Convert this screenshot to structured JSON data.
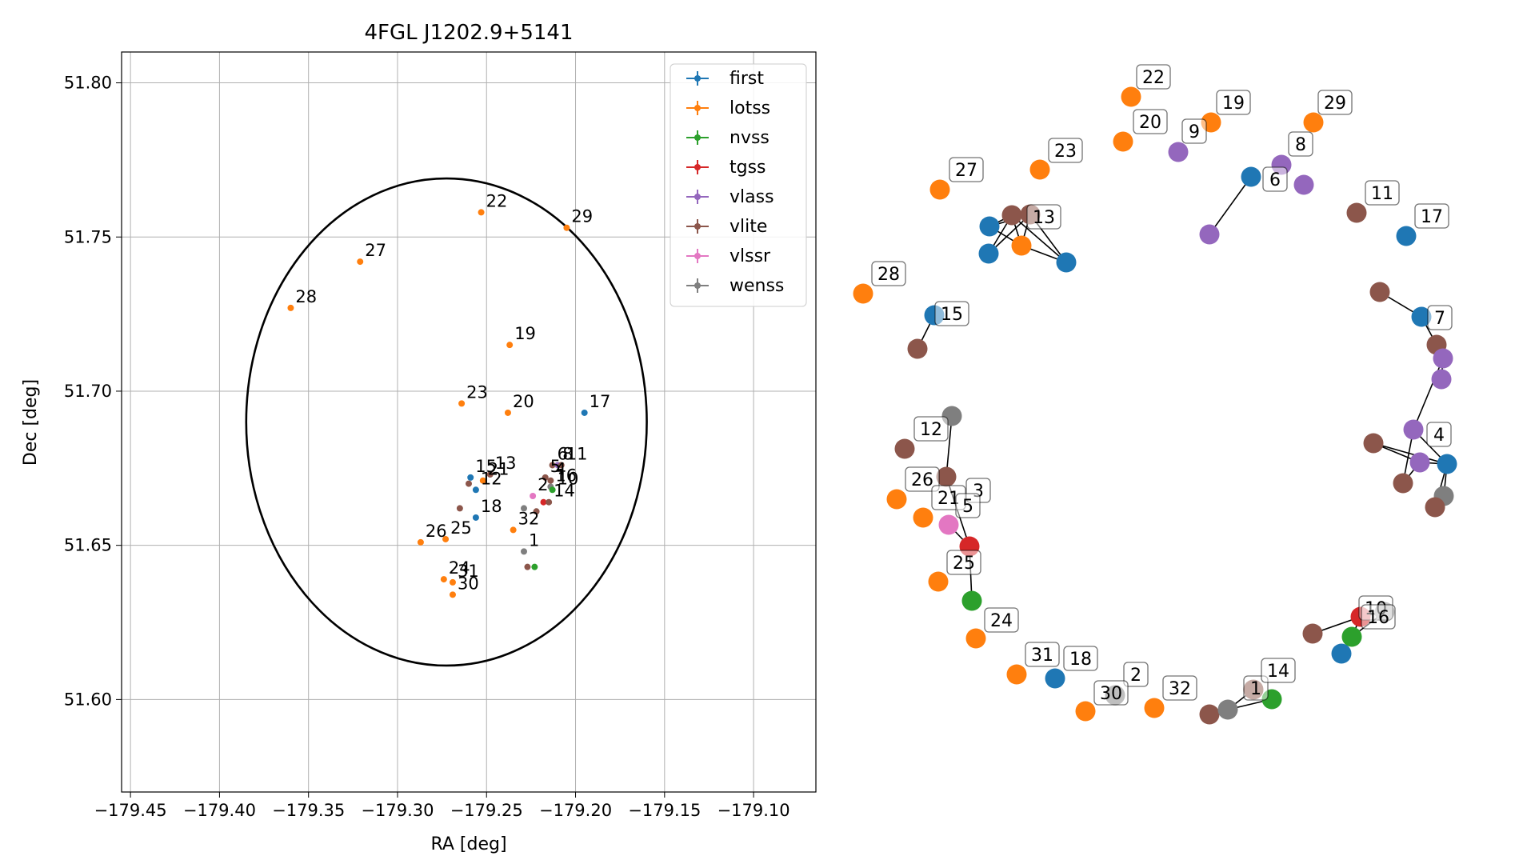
{
  "colors": {
    "first": "#1f77b4",
    "lotss": "#ff7f0e",
    "nvss": "#2ca02c",
    "tgss": "#d62728",
    "vlass": "#9467bd",
    "vlite": "#8c564b",
    "vlssr": "#e377c2",
    "wenss": "#7f7f7f"
  },
  "chart_data": [
    {
      "type": "scatter",
      "title": "4FGL J1202.9+5141",
      "xlabel": "RA [deg]",
      "ylabel": "Dec [deg]",
      "xlim": [
        -179.455,
        -179.065
      ],
      "ylim": [
        51.57,
        51.81
      ],
      "xticks": [
        -179.45,
        -179.4,
        -179.35,
        -179.3,
        -179.25,
        -179.2,
        -179.15,
        -179.1
      ],
      "xtick_labels": [
        "−179.45",
        "−179.40",
        "−179.35",
        "−179.30",
        "−179.25",
        "−179.20",
        "−179.15",
        "−179.10"
      ],
      "yticks": [
        51.6,
        51.65,
        51.7,
        51.75,
        51.8
      ],
      "ytick_labels": [
        "51.60",
        "51.65",
        "51.70",
        "51.75",
        "51.80"
      ],
      "grid": true,
      "legend_position": "top-right",
      "legend": [
        "first",
        "lotss",
        "nvss",
        "tgss",
        "vlass",
        "vlite",
        "vlssr",
        "wenss"
      ],
      "ellipse": {
        "center": [
          -179.2725,
          51.69
        ],
        "semi_axis_ra": 0.1125,
        "semi_axis_dec": 0.079
      },
      "points": [
        {
          "survey": "lotss",
          "ra": -179.253,
          "dec": 51.758,
          "label": "22"
        },
        {
          "survey": "lotss",
          "ra": -179.205,
          "dec": 51.753,
          "label": "29"
        },
        {
          "survey": "lotss",
          "ra": -179.321,
          "dec": 51.742,
          "label": "27"
        },
        {
          "survey": "lotss",
          "ra": -179.36,
          "dec": 51.727,
          "label": "28"
        },
        {
          "survey": "lotss",
          "ra": -179.237,
          "dec": 51.715,
          "label": "19"
        },
        {
          "survey": "lotss",
          "ra": -179.264,
          "dec": 51.696,
          "label": "23"
        },
        {
          "survey": "lotss",
          "ra": -179.238,
          "dec": 51.693,
          "label": "20"
        },
        {
          "survey": "first",
          "ra": -179.195,
          "dec": 51.693,
          "label": "17"
        },
        {
          "survey": "vlite",
          "ra": -179.213,
          "dec": 51.676,
          "label": "6"
        },
        {
          "survey": "vlass",
          "ra": -179.21,
          "dec": 51.676,
          "label": "8"
        },
        {
          "survey": "vlite",
          "ra": -179.208,
          "dec": 51.676,
          "label": "11"
        },
        {
          "survey": "first",
          "ra": -179.259,
          "dec": 51.672,
          "label": "15"
        },
        {
          "survey": "vlite",
          "ra": -179.248,
          "dec": 51.673,
          "label": "13"
        },
        {
          "survey": "lotss",
          "ra": -179.252,
          "dec": 51.671,
          "label": "21"
        },
        {
          "survey": "vlite",
          "ra": -179.214,
          "dec": 51.671,
          "label": "4"
        },
        {
          "survey": "wenss",
          "ra": -179.214,
          "dec": 51.669,
          "label": "16"
        },
        {
          "survey": "vlite",
          "ra": -179.217,
          "dec": 51.672,
          "label": "5"
        },
        {
          "survey": "nvss",
          "ra": -179.213,
          "dec": 51.668,
          "label": "10"
        },
        {
          "survey": "first",
          "ra": -179.256,
          "dec": 51.668,
          "label": "12"
        },
        {
          "survey": "vlite",
          "ra": -179.26,
          "dec": 51.67,
          "label": ""
        },
        {
          "survey": "vlssr",
          "ra": -179.224,
          "dec": 51.666,
          "label": "2"
        },
        {
          "survey": "tgss",
          "ra": -179.218,
          "dec": 51.664,
          "label": ""
        },
        {
          "survey": "vlite",
          "ra": -179.215,
          "dec": 51.664,
          "label": "14"
        },
        {
          "survey": "first",
          "ra": -179.256,
          "dec": 51.659,
          "label": "18"
        },
        {
          "survey": "vlite",
          "ra": -179.265,
          "dec": 51.662,
          "label": ""
        },
        {
          "survey": "wenss",
          "ra": -179.229,
          "dec": 51.662,
          "label": ""
        },
        {
          "survey": "vlite",
          "ra": -179.222,
          "dec": 51.661,
          "label": ""
        },
        {
          "survey": "lotss",
          "ra": -179.235,
          "dec": 51.655,
          "label": "32"
        },
        {
          "survey": "lotss",
          "ra": -179.273,
          "dec": 51.652,
          "label": "25"
        },
        {
          "survey": "lotss",
          "ra": -179.287,
          "dec": 51.651,
          "label": "26"
        },
        {
          "survey": "wenss",
          "ra": -179.229,
          "dec": 51.648,
          "label": "1"
        },
        {
          "survey": "nvss",
          "ra": -179.223,
          "dec": 51.643,
          "label": ""
        },
        {
          "survey": "vlite",
          "ra": -179.227,
          "dec": 51.643,
          "label": ""
        },
        {
          "survey": "lotss",
          "ra": -179.274,
          "dec": 51.639,
          "label": "24"
        },
        {
          "survey": "lotss",
          "ra": -179.269,
          "dec": 51.638,
          "label": "31"
        },
        {
          "survey": "lotss",
          "ra": -179.269,
          "dec": 51.634,
          "label": "30"
        }
      ]
    },
    {
      "type": "network",
      "nodes": [
        {
          "id": "n22",
          "survey": "lotss",
          "label": "22"
        },
        {
          "id": "n19",
          "survey": "lotss",
          "label": "19"
        },
        {
          "id": "n29",
          "survey": "lotss",
          "label": "29"
        },
        {
          "id": "n20",
          "survey": "lotss",
          "label": "20"
        },
        {
          "id": "n9",
          "survey": "vlass",
          "label": "9"
        },
        {
          "id": "n23",
          "survey": "lotss",
          "label": "23"
        },
        {
          "id": "n6",
          "survey": "first",
          "label": "6"
        },
        {
          "id": "n8",
          "survey": "vlass",
          "label": "8"
        },
        {
          "id": "n8b",
          "survey": "vlass",
          "label": ""
        },
        {
          "id": "n6b",
          "survey": "vlass",
          "label": ""
        },
        {
          "id": "n27",
          "survey": "lotss",
          "label": "27"
        },
        {
          "id": "n13a",
          "survey": "vlite",
          "label": ""
        },
        {
          "id": "n13",
          "survey": "vlite",
          "label": "13"
        },
        {
          "id": "n13f1",
          "survey": "first",
          "label": ""
        },
        {
          "id": "n13f2",
          "survey": "first",
          "label": ""
        },
        {
          "id": "n13l",
          "survey": "lotss",
          "label": ""
        },
        {
          "id": "n13f3",
          "survey": "first",
          "label": ""
        },
        {
          "id": "n11",
          "survey": "vlite",
          "label": "11"
        },
        {
          "id": "n17",
          "survey": "first",
          "label": "17"
        },
        {
          "id": "n28",
          "survey": "lotss",
          "label": "28"
        },
        {
          "id": "n15",
          "survey": "first",
          "label": "15"
        },
        {
          "id": "n15b",
          "survey": "vlite",
          "label": ""
        },
        {
          "id": "n7a",
          "survey": "vlite",
          "label": ""
        },
        {
          "id": "n7",
          "survey": "first",
          "label": "7"
        },
        {
          "id": "n7b",
          "survey": "vlite",
          "label": ""
        },
        {
          "id": "n7c",
          "survey": "vlass",
          "label": ""
        },
        {
          "id": "n7d",
          "survey": "vlass",
          "label": ""
        },
        {
          "id": "n12w",
          "survey": "wenss",
          "label": ""
        },
        {
          "id": "n12",
          "survey": "vlite",
          "label": "12"
        },
        {
          "id": "n4",
          "survey": "vlass",
          "label": "4"
        },
        {
          "id": "n4a",
          "survey": "vlite",
          "label": ""
        },
        {
          "id": "n4b",
          "survey": "vlass",
          "label": ""
        },
        {
          "id": "n4c",
          "survey": "first",
          "label": ""
        },
        {
          "id": "n4d",
          "survey": "vlite",
          "label": ""
        },
        {
          "id": "n4e",
          "survey": "wenss",
          "label": ""
        },
        {
          "id": "n4f",
          "survey": "vlite",
          "label": ""
        },
        {
          "id": "n26",
          "survey": "lotss",
          "label": "26"
        },
        {
          "id": "n3",
          "survey": "vlite",
          "label": "3"
        },
        {
          "id": "n21",
          "survey": "lotss",
          "label": "21"
        },
        {
          "id": "n5",
          "survey": "vlssr",
          "label": "5"
        },
        {
          "id": "n5t",
          "survey": "tgss",
          "label": ""
        },
        {
          "id": "n25",
          "survey": "lotss",
          "label": "25"
        },
        {
          "id": "n25n",
          "survey": "nvss",
          "label": ""
        },
        {
          "id": "n24",
          "survey": "lotss",
          "label": "24"
        },
        {
          "id": "n10",
          "survey": "tgss",
          "label": "10"
        },
        {
          "id": "n16",
          "survey": "wenss",
          "label": "16"
        },
        {
          "id": "n16a",
          "survey": "vlite",
          "label": ""
        },
        {
          "id": "n16n",
          "survey": "nvss",
          "label": ""
        },
        {
          "id": "n16f",
          "survey": "first",
          "label": ""
        },
        {
          "id": "n31",
          "survey": "lotss",
          "label": "31"
        },
        {
          "id": "n18",
          "survey": "first",
          "label": "18"
        },
        {
          "id": "n2",
          "survey": "wenss",
          "label": "2"
        },
        {
          "id": "n30",
          "survey": "lotss",
          "label": "30"
        },
        {
          "id": "n32",
          "survey": "lotss",
          "label": "32"
        },
        {
          "id": "n1",
          "survey": "vlite",
          "label": "1"
        },
        {
          "id": "n1v",
          "survey": "vlite",
          "label": ""
        },
        {
          "id": "n1w",
          "survey": "wenss",
          "label": ""
        },
        {
          "id": "n14",
          "survey": "nvss",
          "label": "14"
        }
      ],
      "edges": [
        [
          "n6",
          "n6b"
        ],
        [
          "n13a",
          "n13f1"
        ],
        [
          "n13a",
          "n13f2"
        ],
        [
          "n13a",
          "n13l"
        ],
        [
          "n13a",
          "n13f3"
        ],
        [
          "n13",
          "n13f1"
        ],
        [
          "n13",
          "n13f2"
        ],
        [
          "n13",
          "n13l"
        ],
        [
          "n13",
          "n13f3"
        ],
        [
          "n13f1",
          "n13l"
        ],
        [
          "n13l",
          "n13f3"
        ],
        [
          "n15",
          "n15b"
        ],
        [
          "n7a",
          "n7"
        ],
        [
          "n7",
          "n7b"
        ],
        [
          "n7b",
          "n7c"
        ],
        [
          "n7c",
          "n7d"
        ],
        [
          "n7c",
          "n4"
        ],
        [
          "n12w",
          "n3"
        ],
        [
          "n4a",
          "n4c"
        ],
        [
          "n4a",
          "n4b"
        ],
        [
          "n4",
          "n4c"
        ],
        [
          "n4",
          "n4d"
        ],
        [
          "n4b",
          "n4d"
        ],
        [
          "n4c",
          "n4e"
        ],
        [
          "n4c",
          "n4f"
        ],
        [
          "n4e",
          "n4f"
        ],
        [
          "n4b",
          "n4c"
        ],
        [
          "n3",
          "n5t"
        ],
        [
          "n5",
          "n5t"
        ],
        [
          "n5t",
          "n25n"
        ],
        [
          "n16a",
          "n10"
        ],
        [
          "n10",
          "n16"
        ],
        [
          "n16",
          "n16n"
        ],
        [
          "n16n",
          "n16f"
        ],
        [
          "n10",
          "n16n"
        ],
        [
          "n1v",
          "n1w"
        ],
        [
          "n1w",
          "n14"
        ],
        [
          "n1",
          "n1w"
        ]
      ]
    }
  ]
}
